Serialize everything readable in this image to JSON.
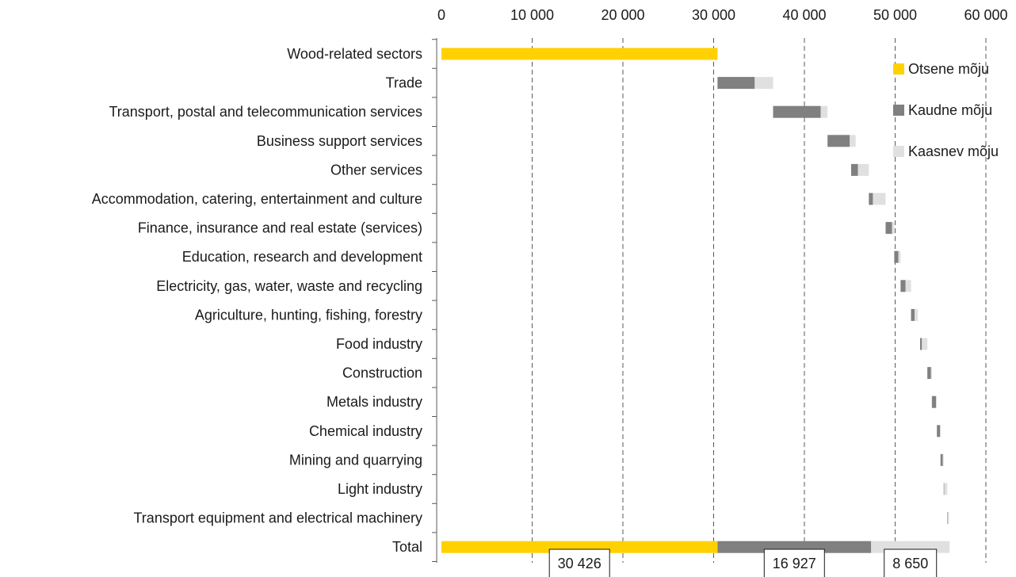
{
  "chart_data": {
    "type": "bar",
    "orientation": "horizontal",
    "stacking": "waterfall",
    "title": "",
    "xlabel": "",
    "ylabel": "",
    "xlim": [
      0,
      60000
    ],
    "x_ticks": [
      0,
      10000,
      20000,
      30000,
      40000,
      50000,
      60000
    ],
    "x_tick_labels": [
      "0",
      "10 000",
      "20 000",
      "30 000",
      "40 000",
      "50 000",
      "60 000"
    ],
    "x_axis_position": "top",
    "grid": "vertical dashed",
    "legend_position": "right",
    "categories": [
      "Wood-related sectors",
      "Trade",
      "Transport, postal and telecommunication services",
      "Business support services",
      "Other services",
      "Accommodation, catering, entertainment and culture",
      "Finance, insurance and real estate (services)",
      "Education, research and development",
      "Electricity, gas, water, waste and recycling",
      "Agriculture, hunting, fishing, forestry",
      "Food industry",
      "Construction",
      "Metals industry",
      "Chemical industry",
      "Mining and quarrying",
      "Light industry",
      "Transport equipment and electrical machinery",
      "Total"
    ],
    "offsets": [
      0,
      30426,
      36550,
      42550,
      45150,
      47100,
      48950,
      49900,
      50600,
      51750,
      52750,
      53550,
      54050,
      54600,
      55000,
      55350,
      55750,
      0
    ],
    "series": [
      {
        "name": "Otsene mõju",
        "color": "#FFD100",
        "values": [
          30426,
          0,
          0,
          0,
          0,
          0,
          0,
          0,
          0,
          0,
          0,
          0,
          0,
          0,
          0,
          0,
          0,
          30426
        ]
      },
      {
        "name": "Kaudne mõju",
        "color": "#808080",
        "values": [
          0,
          4100,
          5250,
          2450,
          750,
          450,
          700,
          450,
          550,
          400,
          200,
          400,
          450,
          350,
          250,
          50,
          50,
          16927
        ]
      },
      {
        "name": "Kaasnev mõju",
        "color": "#E0E0E0",
        "values": [
          0,
          2024,
          750,
          650,
          1200,
          1400,
          250,
          250,
          600,
          350,
          600,
          100,
          100,
          50,
          100,
          350,
          150,
          8650
        ]
      }
    ],
    "total_labels": [
      "30 426",
      "16 927",
      "8 650"
    ]
  }
}
